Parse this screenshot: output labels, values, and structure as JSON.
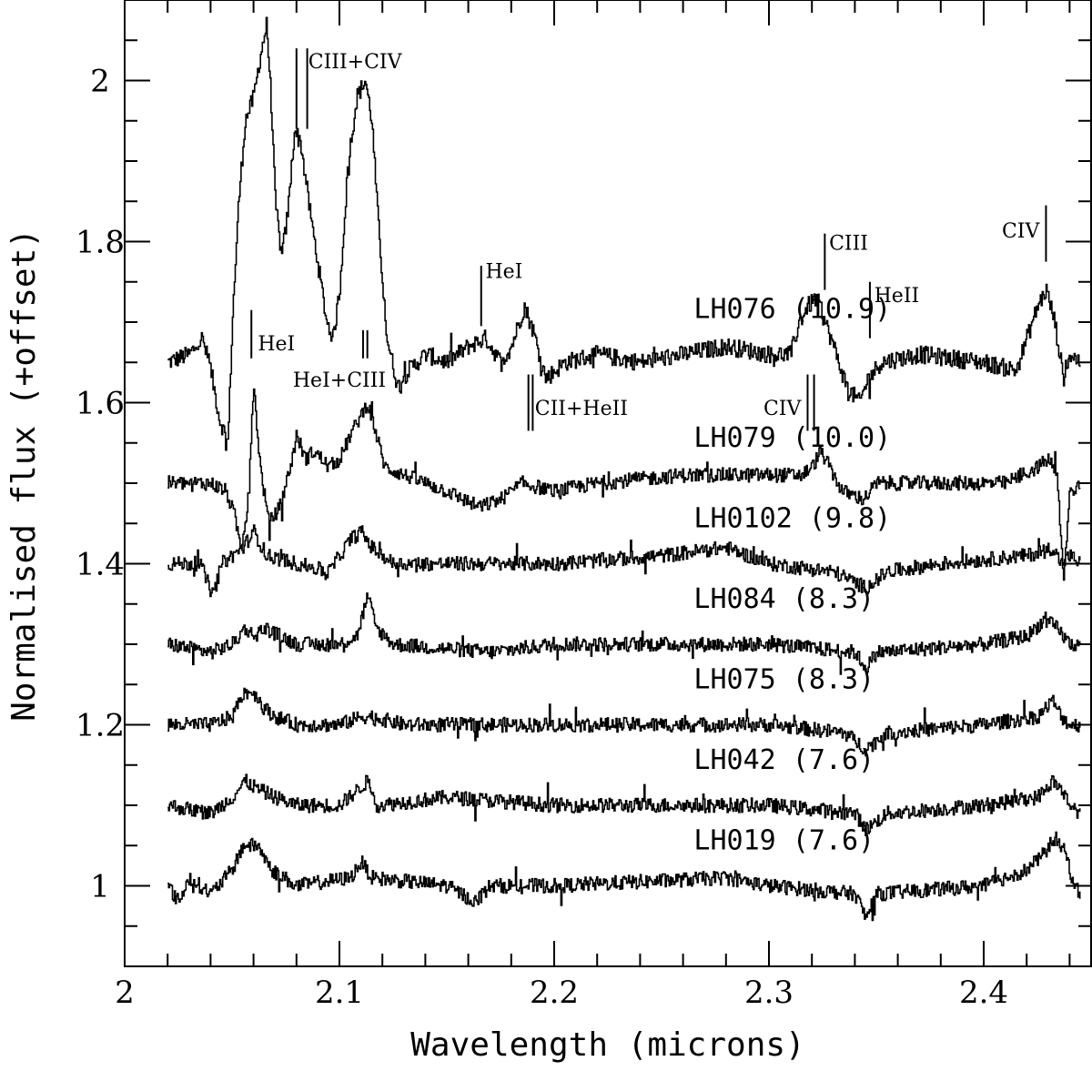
{
  "chart_data": {
    "type": "line",
    "title": "",
    "xlabel": "Wavelength (microns)",
    "ylabel": "Normalised flux (+offset)",
    "xlim": [
      2.0,
      2.45
    ],
    "ylim": [
      0.9,
      2.1
    ],
    "xticks": [
      2.0,
      2.1,
      2.2,
      2.3,
      2.4
    ],
    "xtick_labels": [
      "2",
      "2.1",
      "2.2",
      "2.3",
      "2.4"
    ],
    "yticks": [
      1.0,
      1.2,
      1.4,
      1.6,
      1.8,
      2.0
    ],
    "ytick_labels": [
      "1",
      "1.2",
      "1.4",
      "1.6",
      "1.8",
      "2"
    ],
    "grid": false,
    "legend": "none",
    "series": [
      {
        "name": "LH076 (10.9)",
        "baseline": 1.65,
        "label_x": 2.265,
        "label_y": 1.705,
        "points": [
          [
            2.02,
            1.65
          ],
          [
            2.03,
            1.66
          ],
          [
            2.036,
            1.68
          ],
          [
            2.04,
            1.64
          ],
          [
            2.044,
            1.58
          ],
          [
            2.048,
            1.55
          ],
          [
            2.05,
            1.7
          ],
          [
            2.053,
            1.85
          ],
          [
            2.056,
            1.95
          ],
          [
            2.06,
            1.98
          ],
          [
            2.063,
            2.03
          ],
          [
            2.066,
            2.07
          ],
          [
            2.068,
            1.98
          ],
          [
            2.07,
            1.85
          ],
          [
            2.073,
            1.78
          ],
          [
            2.076,
            1.84
          ],
          [
            2.079,
            1.94
          ],
          [
            2.082,
            1.92
          ],
          [
            2.086,
            1.84
          ],
          [
            2.09,
            1.77
          ],
          [
            2.094,
            1.7
          ],
          [
            2.097,
            1.68
          ],
          [
            2.1,
            1.74
          ],
          [
            2.104,
            1.9
          ],
          [
            2.108,
            1.98
          ],
          [
            2.112,
            2.0
          ],
          [
            2.115,
            1.95
          ],
          [
            2.118,
            1.82
          ],
          [
            2.122,
            1.68
          ],
          [
            2.127,
            1.62
          ],
          [
            2.132,
            1.64
          ],
          [
            2.14,
            1.66
          ],
          [
            2.15,
            1.65
          ],
          [
            2.16,
            1.67
          ],
          [
            2.168,
            1.68
          ],
          [
            2.175,
            1.65
          ],
          [
            2.18,
            1.67
          ],
          [
            2.186,
            1.72
          ],
          [
            2.19,
            1.69
          ],
          [
            2.196,
            1.63
          ],
          [
            2.205,
            1.65
          ],
          [
            2.22,
            1.66
          ],
          [
            2.24,
            1.65
          ],
          [
            2.26,
            1.66
          ],
          [
            2.28,
            1.67
          ],
          [
            2.3,
            1.66
          ],
          [
            2.31,
            1.66
          ],
          [
            2.314,
            1.7
          ],
          [
            2.318,
            1.72
          ],
          [
            2.322,
            1.73
          ],
          [
            2.326,
            1.7
          ],
          [
            2.33,
            1.67
          ],
          [
            2.336,
            1.62
          ],
          [
            2.342,
            1.6
          ],
          [
            2.346,
            1.63
          ],
          [
            2.352,
            1.65
          ],
          [
            2.37,
            1.66
          ],
          [
            2.4,
            1.65
          ],
          [
            2.415,
            1.64
          ],
          [
            2.42,
            1.68
          ],
          [
            2.425,
            1.72
          ],
          [
            2.429,
            1.74
          ],
          [
            2.433,
            1.7
          ],
          [
            2.437,
            1.63
          ],
          [
            2.44,
            1.66
          ],
          [
            2.445,
            1.65
          ]
        ]
      },
      {
        "name": "LH079 (10.0)",
        "baseline": 1.5,
        "label_x": 2.265,
        "label_y": 1.545,
        "points": [
          [
            2.02,
            1.5
          ],
          [
            2.04,
            1.5
          ],
          [
            2.047,
            1.49
          ],
          [
            2.051,
            1.46
          ],
          [
            2.054,
            1.42
          ],
          [
            2.057,
            1.47
          ],
          [
            2.06,
            1.62
          ],
          [
            2.063,
            1.52
          ],
          [
            2.067,
            1.45
          ],
          [
            2.072,
            1.47
          ],
          [
            2.077,
            1.52
          ],
          [
            2.08,
            1.56
          ],
          [
            2.084,
            1.53
          ],
          [
            2.088,
            1.54
          ],
          [
            2.095,
            1.52
          ],
          [
            2.1,
            1.53
          ],
          [
            2.105,
            1.56
          ],
          [
            2.109,
            1.58
          ],
          [
            2.113,
            1.6
          ],
          [
            2.117,
            1.56
          ],
          [
            2.121,
            1.52
          ],
          [
            2.13,
            1.51
          ],
          [
            2.14,
            1.5
          ],
          [
            2.15,
            1.49
          ],
          [
            2.165,
            1.47
          ],
          [
            2.175,
            1.48
          ],
          [
            2.185,
            1.5
          ],
          [
            2.2,
            1.49
          ],
          [
            2.22,
            1.5
          ],
          [
            2.26,
            1.51
          ],
          [
            2.3,
            1.51
          ],
          [
            2.315,
            1.51
          ],
          [
            2.32,
            1.52
          ],
          [
            2.324,
            1.54
          ],
          [
            2.328,
            1.52
          ],
          [
            2.334,
            1.49
          ],
          [
            2.344,
            1.48
          ],
          [
            2.35,
            1.5
          ],
          [
            2.38,
            1.5
          ],
          [
            2.41,
            1.5
          ],
          [
            2.425,
            1.52
          ],
          [
            2.43,
            1.53
          ],
          [
            2.434,
            1.51
          ],
          [
            2.437,
            1.38
          ],
          [
            2.44,
            1.49
          ],
          [
            2.445,
            1.5
          ]
        ]
      },
      {
        "name": "LH0102 (9.8)",
        "baseline": 1.4,
        "label_x": 2.265,
        "label_y": 1.445,
        "points": [
          [
            2.02,
            1.4
          ],
          [
            2.035,
            1.4
          ],
          [
            2.041,
            1.36
          ],
          [
            2.045,
            1.4
          ],
          [
            2.055,
            1.42
          ],
          [
            2.06,
            1.44
          ],
          [
            2.066,
            1.41
          ],
          [
            2.08,
            1.4
          ],
          [
            2.095,
            1.39
          ],
          [
            2.105,
            1.43
          ],
          [
            2.11,
            1.44
          ],
          [
            2.115,
            1.42
          ],
          [
            2.125,
            1.4
          ],
          [
            2.15,
            1.4
          ],
          [
            2.2,
            1.4
          ],
          [
            2.25,
            1.41
          ],
          [
            2.28,
            1.42
          ],
          [
            2.3,
            1.4
          ],
          [
            2.33,
            1.39
          ],
          [
            2.345,
            1.37
          ],
          [
            2.355,
            1.39
          ],
          [
            2.38,
            1.4
          ],
          [
            2.42,
            1.41
          ],
          [
            2.432,
            1.42
          ],
          [
            2.436,
            1.4
          ],
          [
            2.44,
            1.41
          ],
          [
            2.445,
            1.4
          ]
        ]
      },
      {
        "name": "LH084 (8.3)",
        "baseline": 1.3,
        "label_x": 2.265,
        "label_y": 1.345,
        "points": [
          [
            2.02,
            1.3
          ],
          [
            2.04,
            1.29
          ],
          [
            2.05,
            1.3
          ],
          [
            2.056,
            1.32
          ],
          [
            2.06,
            1.31
          ],
          [
            2.065,
            1.32
          ],
          [
            2.08,
            1.3
          ],
          [
            2.1,
            1.3
          ],
          [
            2.108,
            1.31
          ],
          [
            2.113,
            1.36
          ],
          [
            2.117,
            1.32
          ],
          [
            2.125,
            1.3
          ],
          [
            2.17,
            1.29
          ],
          [
            2.2,
            1.3
          ],
          [
            2.3,
            1.3
          ],
          [
            2.34,
            1.29
          ],
          [
            2.345,
            1.27
          ],
          [
            2.35,
            1.29
          ],
          [
            2.4,
            1.3
          ],
          [
            2.42,
            1.31
          ],
          [
            2.428,
            1.33
          ],
          [
            2.434,
            1.32
          ],
          [
            2.44,
            1.3
          ],
          [
            2.445,
            1.3
          ]
        ]
      },
      {
        "name": "LH075 (8.3)",
        "baseline": 1.2,
        "label_x": 2.265,
        "label_y": 1.245,
        "points": [
          [
            2.02,
            1.2
          ],
          [
            2.04,
            1.2
          ],
          [
            2.05,
            1.21
          ],
          [
            2.055,
            1.24
          ],
          [
            2.06,
            1.24
          ],
          [
            2.065,
            1.22
          ],
          [
            2.07,
            1.21
          ],
          [
            2.08,
            1.2
          ],
          [
            2.1,
            1.2
          ],
          [
            2.11,
            1.21
          ],
          [
            2.115,
            1.21
          ],
          [
            2.13,
            1.2
          ],
          [
            2.2,
            1.2
          ],
          [
            2.3,
            1.2
          ],
          [
            2.335,
            1.19
          ],
          [
            2.345,
            1.17
          ],
          [
            2.355,
            1.19
          ],
          [
            2.4,
            1.2
          ],
          [
            2.425,
            1.21
          ],
          [
            2.432,
            1.23
          ],
          [
            2.436,
            1.21
          ],
          [
            2.44,
            1.2
          ],
          [
            2.445,
            1.2
          ]
        ]
      },
      {
        "name": "LH042 (7.6)",
        "baseline": 1.1,
        "label_x": 2.265,
        "label_y": 1.145,
        "points": [
          [
            2.02,
            1.1
          ],
          [
            2.04,
            1.09
          ],
          [
            2.05,
            1.11
          ],
          [
            2.056,
            1.13
          ],
          [
            2.062,
            1.12
          ],
          [
            2.07,
            1.11
          ],
          [
            2.08,
            1.1
          ],
          [
            2.1,
            1.1
          ],
          [
            2.113,
            1.13
          ],
          [
            2.118,
            1.1
          ],
          [
            2.15,
            1.11
          ],
          [
            2.2,
            1.1
          ],
          [
            2.3,
            1.1
          ],
          [
            2.34,
            1.09
          ],
          [
            2.345,
            1.07
          ],
          [
            2.355,
            1.09
          ],
          [
            2.4,
            1.1
          ],
          [
            2.425,
            1.11
          ],
          [
            2.432,
            1.13
          ],
          [
            2.436,
            1.12
          ],
          [
            2.44,
            1.1
          ],
          [
            2.445,
            1.09
          ]
        ]
      },
      {
        "name": "LH019 (7.6)",
        "baseline": 1.0,
        "label_x": 2.265,
        "label_y": 1.045,
        "points": [
          [
            2.02,
            1.0
          ],
          [
            2.025,
            0.98
          ],
          [
            2.03,
            1.01
          ],
          [
            2.04,
            0.99
          ],
          [
            2.05,
            1.02
          ],
          [
            2.055,
            1.05
          ],
          [
            2.062,
            1.05
          ],
          [
            2.068,
            1.02
          ],
          [
            2.08,
            1.0
          ],
          [
            2.105,
            1.01
          ],
          [
            2.11,
            1.03
          ],
          [
            2.115,
            1.01
          ],
          [
            2.15,
            1.0
          ],
          [
            2.163,
            0.98
          ],
          [
            2.17,
            1.0
          ],
          [
            2.2,
            1.0
          ],
          [
            2.28,
            1.01
          ],
          [
            2.3,
            1.0
          ],
          [
            2.34,
            0.99
          ],
          [
            2.345,
            0.96
          ],
          [
            2.35,
            0.99
          ],
          [
            2.4,
            1.0
          ],
          [
            2.42,
            1.02
          ],
          [
            2.428,
            1.04
          ],
          [
            2.433,
            1.06
          ],
          [
            2.438,
            1.04
          ],
          [
            2.442,
            1.0
          ],
          [
            2.445,
            0.99
          ]
        ]
      }
    ],
    "annotations": [
      {
        "text": "CIII+CIV",
        "label_x": 2.0855,
        "label_y": 2.015,
        "anchor": "start",
        "markers": [
          {
            "x": 2.08,
            "y1": 1.94,
            "y2": 2.04
          },
          {
            "x": 2.085,
            "y1": 1.94,
            "y2": 2.04
          }
        ]
      },
      {
        "text": "HeI",
        "label_x": 2.062,
        "label_y": 1.665,
        "anchor": "start",
        "markers": [
          {
            "x": 2.059,
            "y1": 1.655,
            "y2": 1.715
          }
        ]
      },
      {
        "text": "HeI+CIII",
        "label_x": 2.1,
        "label_y": 1.62,
        "anchor": "middle",
        "markers": [
          {
            "x": 2.111,
            "y1": 1.655,
            "y2": 1.69
          },
          {
            "x": 2.113,
            "y1": 1.655,
            "y2": 1.69
          }
        ]
      },
      {
        "text": "HeI",
        "label_x": 2.168,
        "label_y": 1.755,
        "anchor": "start",
        "markers": [
          {
            "x": 2.166,
            "y1": 1.695,
            "y2": 1.77
          }
        ]
      },
      {
        "text": "CII+HeII",
        "label_x": 2.191,
        "label_y": 1.585,
        "anchor": "start",
        "markers": [
          {
            "x": 2.188,
            "y1": 1.565,
            "y2": 1.635
          },
          {
            "x": 2.19,
            "y1": 1.565,
            "y2": 1.635
          }
        ]
      },
      {
        "text": "CIV",
        "label_x": 2.315,
        "label_y": 1.585,
        "anchor": "end",
        "markers": [
          {
            "x": 2.318,
            "y1": 1.565,
            "y2": 1.635
          },
          {
            "x": 2.321,
            "y1": 1.565,
            "y2": 1.635
          }
        ]
      },
      {
        "text": "CIII",
        "label_x": 2.328,
        "label_y": 1.79,
        "anchor": "start",
        "markers": [
          {
            "x": 2.326,
            "y1": 1.74,
            "y2": 1.81
          }
        ]
      },
      {
        "text": "HeII",
        "label_x": 2.349,
        "label_y": 1.725,
        "anchor": "start",
        "markers": [
          {
            "x": 2.347,
            "y1": 1.68,
            "y2": 1.75
          }
        ]
      },
      {
        "text": "CIV",
        "label_x": 2.426,
        "label_y": 1.805,
        "anchor": "end",
        "markers": [
          {
            "x": 2.429,
            "y1": 1.775,
            "y2": 1.845
          }
        ]
      }
    ]
  }
}
